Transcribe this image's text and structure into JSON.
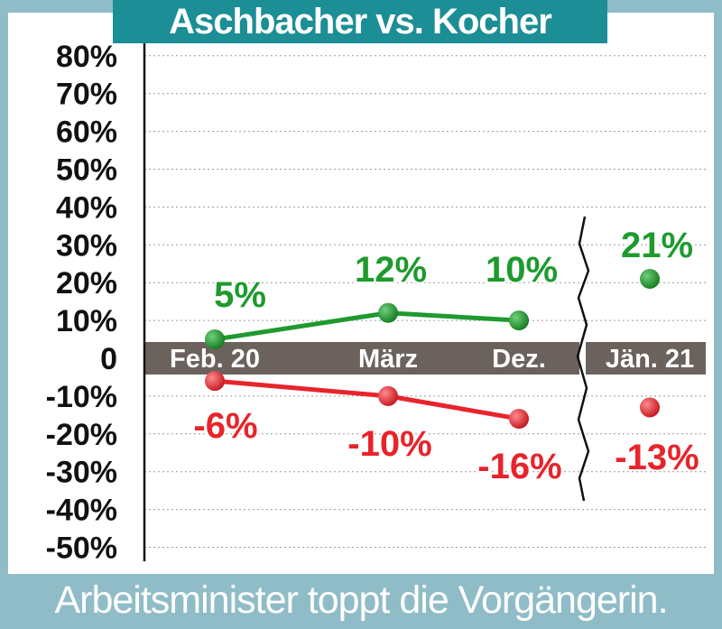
{
  "header": {
    "title": "Aschbacher vs. Kocher"
  },
  "footer": {
    "caption": "Arbeitsminister toppt die Vorgängerin."
  },
  "chart_data": {
    "type": "line",
    "categories": [
      "Feb. 20",
      "März",
      "Dez.",
      "Jän. 21"
    ],
    "ylim": [
      -50,
      80
    ],
    "yticks": [
      80,
      70,
      60,
      50,
      40,
      30,
      20,
      10,
      0,
      -10,
      -20,
      -30,
      -40,
      -50
    ],
    "ytick_labels": [
      "80%",
      "70%",
      "60%",
      "50%",
      "40%",
      "30%",
      "20%",
      "10%",
      "0",
      "-10%",
      "-20%",
      "-30%",
      "-40%",
      "-50%"
    ],
    "grid": true,
    "axis_break_before": "Jän. 21",
    "series": [
      {
        "color": "#1e9a2e",
        "values": [
          5,
          12,
          10,
          21
        ],
        "labels": [
          "5%",
          "12%",
          "10%",
          "21%"
        ]
      },
      {
        "color": "#e8242b",
        "values": [
          -6,
          -10,
          -16,
          -13
        ],
        "labels": [
          "-6%",
          "-10%",
          "-16%",
          "-13%"
        ]
      }
    ]
  }
}
